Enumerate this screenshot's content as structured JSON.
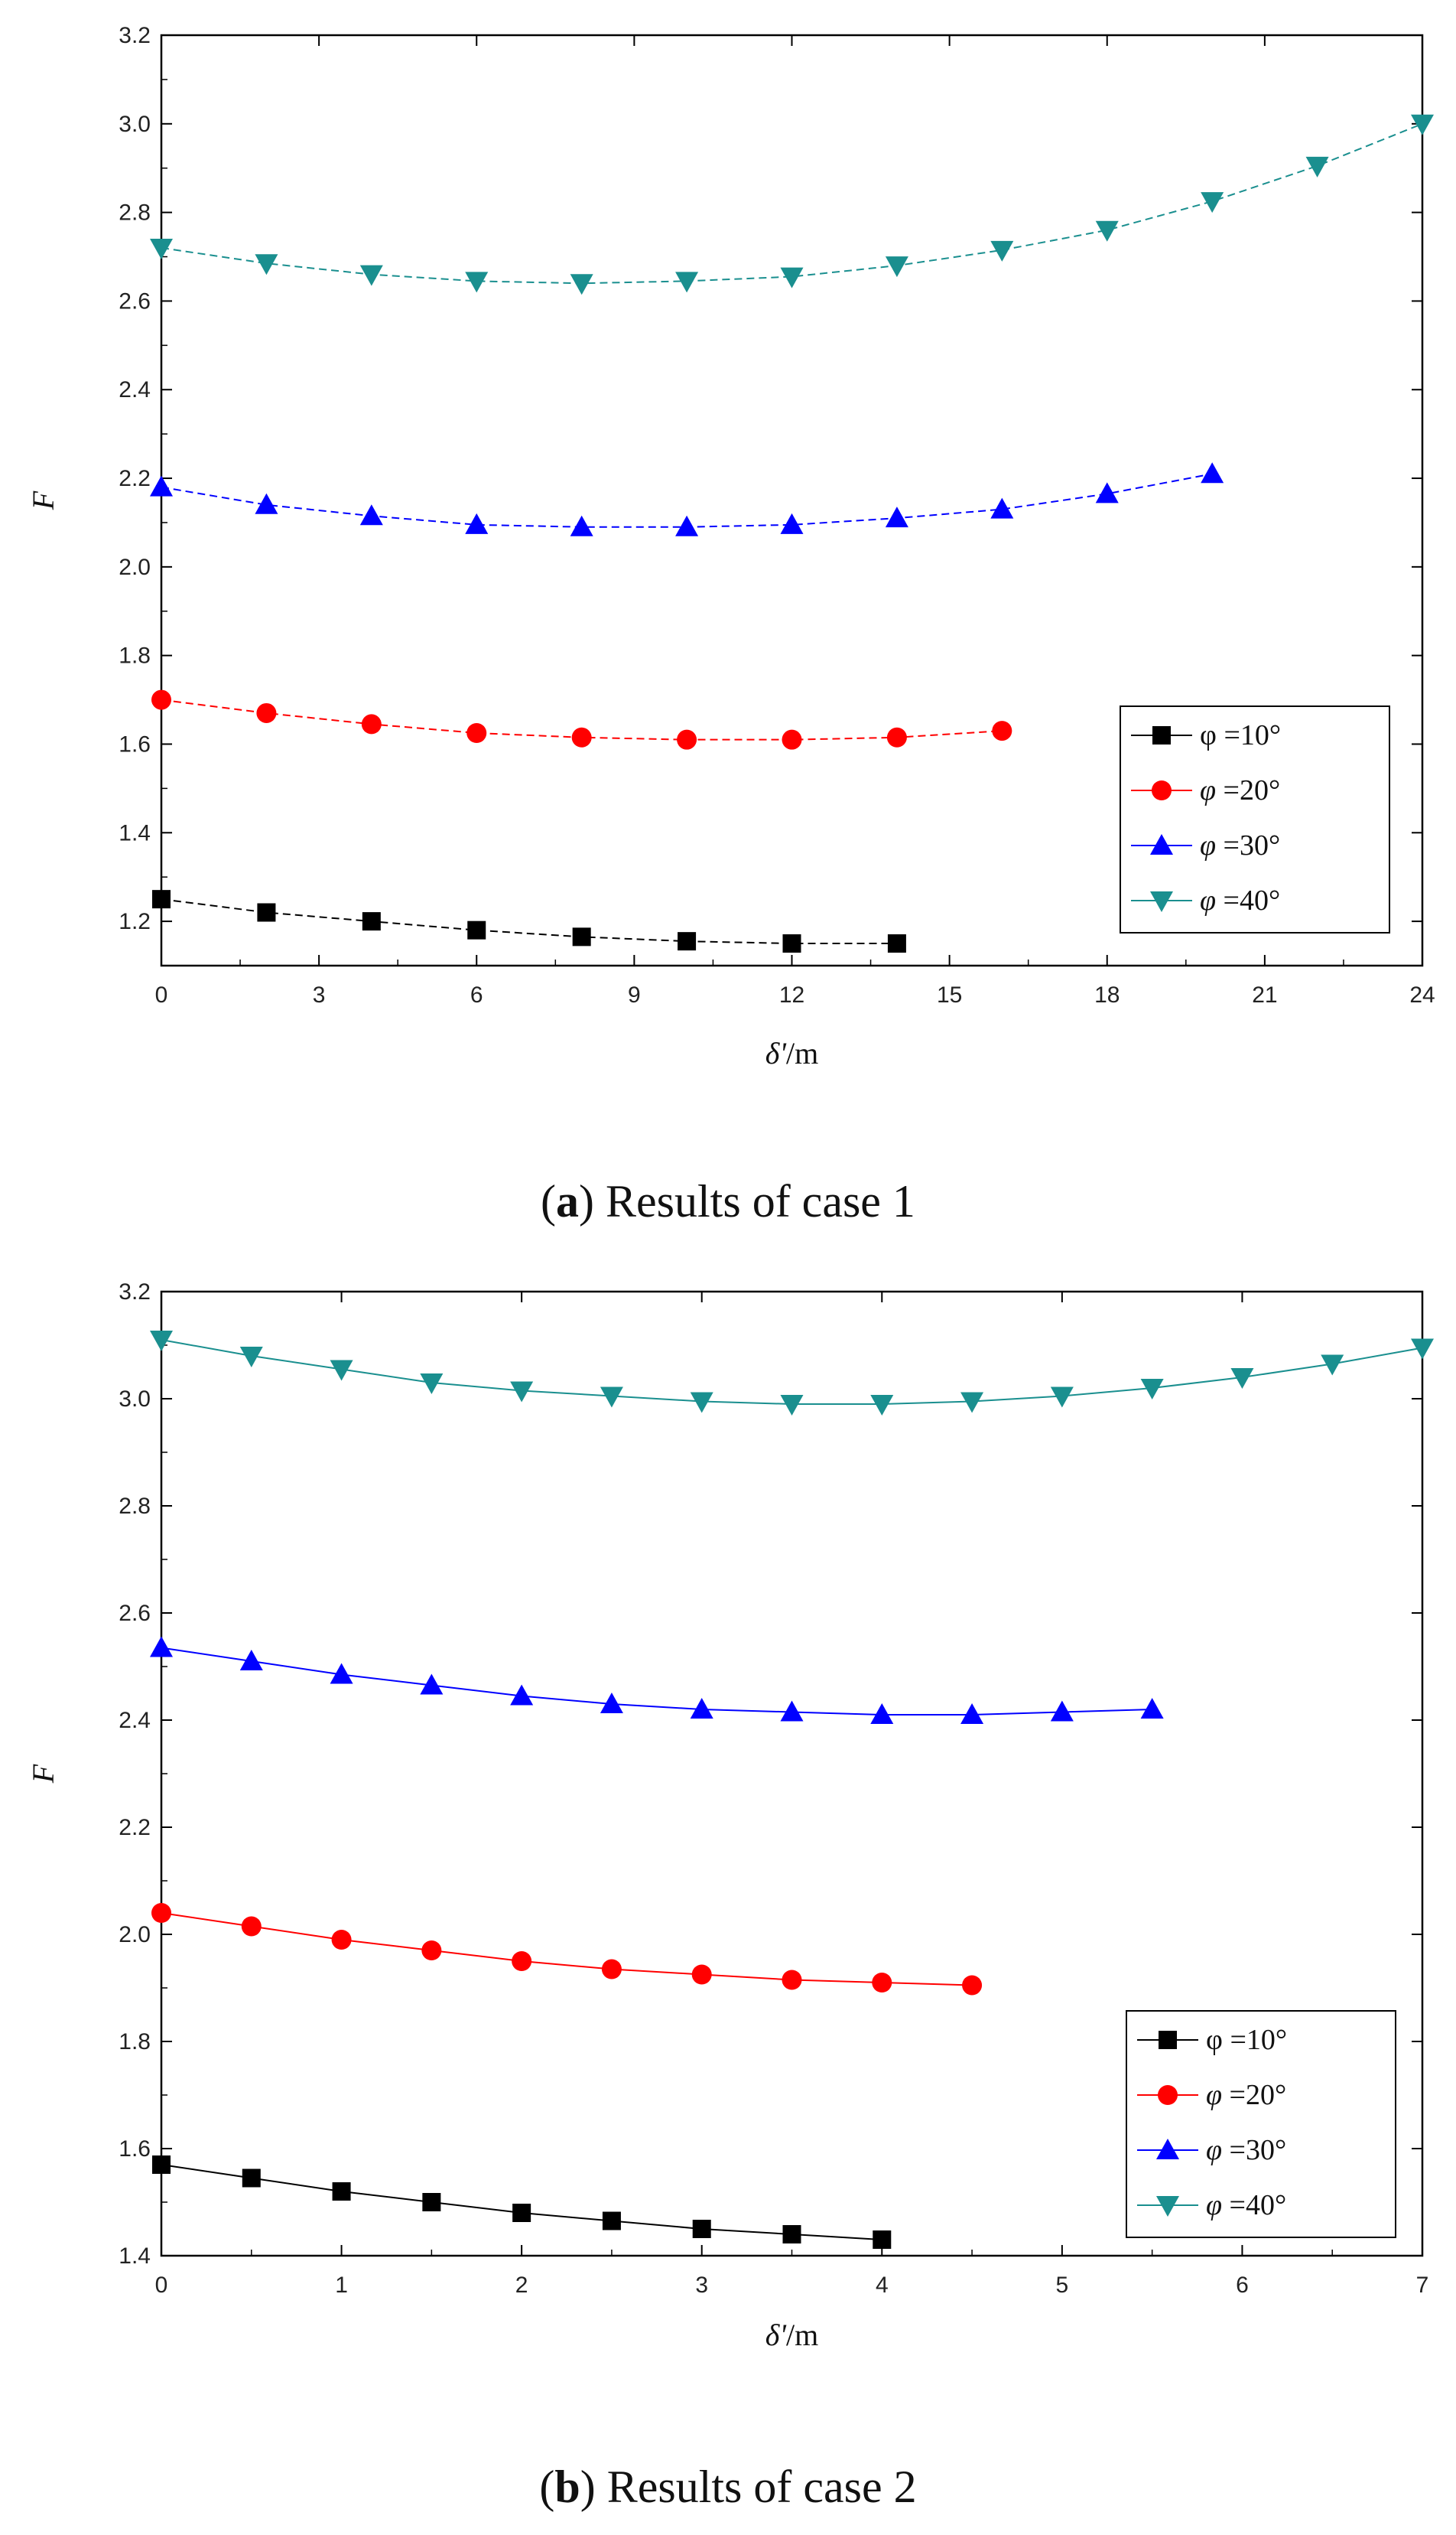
{
  "chart_data": [
    {
      "type": "line",
      "caption": {
        "letter": "a",
        "text": "Results of case 1"
      },
      "xlabel": {
        "symbol": "δ'",
        "unit": "/m"
      },
      "ylabel": "F",
      "xlim": [
        0,
        24
      ],
      "ylim": [
        1.1,
        3.2
      ],
      "xticks": [
        0,
        3,
        6,
        9,
        12,
        15,
        18,
        21,
        24
      ],
      "yticks": [
        1.2,
        1.4,
        1.6,
        1.8,
        2.0,
        2.2,
        2.4,
        2.6,
        2.8,
        3.0,
        3.2
      ],
      "ytick_labels": [
        "1.2",
        "1.4",
        "1.6",
        "1.8",
        "2.0",
        "2.2",
        "2.4",
        "2.6",
        "2.8",
        "3.0",
        "3.2"
      ],
      "legend_position": "bottom-right",
      "series": [
        {
          "name": "φ =10°",
          "symbol": "φ",
          "rest": " =10°",
          "color": "#000000",
          "marker": "square",
          "x": [
            0,
            2,
            4,
            6,
            8,
            10,
            12,
            14
          ],
          "y": [
            1.25,
            1.22,
            1.2,
            1.18,
            1.165,
            1.155,
            1.15,
            1.15
          ]
        },
        {
          "name": "φ =20°",
          "symbol": "φ",
          "rest": " =20°",
          "color": "#ff0000",
          "marker": "circle",
          "x": [
            0,
            2,
            4,
            6,
            8,
            10,
            12,
            14,
            16
          ],
          "y": [
            1.7,
            1.67,
            1.645,
            1.625,
            1.615,
            1.61,
            1.61,
            1.615,
            1.63
          ]
        },
        {
          "name": "φ =30°",
          "symbol": "φ",
          "rest": " =30°",
          "color": "#0000ff",
          "marker": "triangle-up",
          "x": [
            0,
            2,
            4,
            6,
            8,
            10,
            12,
            14,
            16,
            18,
            20
          ],
          "y": [
            2.18,
            2.14,
            2.115,
            2.095,
            2.09,
            2.09,
            2.095,
            2.11,
            2.13,
            2.165,
            2.21
          ]
        },
        {
          "name": "φ =40°",
          "symbol": "φ",
          "rest": " =40°",
          "color": "#1a8f8f",
          "marker": "triangle-down",
          "x": [
            0,
            2,
            4,
            6,
            8,
            10,
            12,
            14,
            16,
            18,
            20,
            22,
            24
          ],
          "y": [
            2.72,
            2.685,
            2.66,
            2.645,
            2.64,
            2.645,
            2.655,
            2.68,
            2.715,
            2.76,
            2.825,
            2.905,
            3.0
          ]
        }
      ]
    },
    {
      "type": "line",
      "caption": {
        "letter": "b",
        "text": "Results of case 2"
      },
      "xlabel": {
        "symbol": "δ'",
        "unit": "/m"
      },
      "ylabel": "F",
      "xlim": [
        0,
        7
      ],
      "ylim": [
        1.4,
        3.2
      ],
      "xticks": [
        0,
        1,
        2,
        3,
        4,
        5,
        6,
        7
      ],
      "yticks": [
        1.4,
        1.6,
        1.8,
        2.0,
        2.2,
        2.4,
        2.6,
        2.8,
        3.0,
        3.2
      ],
      "ytick_labels": [
        "1.4",
        "1.6",
        "1.8",
        "2.0",
        "2.2",
        "2.4",
        "2.6",
        "2.8",
        "3.0",
        "3.2"
      ],
      "legend_position": "bottom-right",
      "series": [
        {
          "name": "φ =10°",
          "symbol": "φ",
          "rest": " =10°",
          "color": "#000000",
          "marker": "square",
          "x": [
            0,
            0.5,
            1,
            1.5,
            2,
            2.5,
            3,
            3.5,
            4
          ],
          "y": [
            1.57,
            1.545,
            1.52,
            1.5,
            1.48,
            1.465,
            1.45,
            1.44,
            1.43
          ]
        },
        {
          "name": "φ =20°",
          "symbol": "φ",
          "rest": " =20°",
          "color": "#ff0000",
          "marker": "circle",
          "x": [
            0,
            0.5,
            1,
            1.5,
            2,
            2.5,
            3,
            3.5,
            4,
            4.5
          ],
          "y": [
            2.04,
            2.015,
            1.99,
            1.97,
            1.95,
            1.935,
            1.925,
            1.915,
            1.91,
            1.905
          ]
        },
        {
          "name": "φ =30°",
          "symbol": "φ",
          "rest": " =30°",
          "color": "#0000ff",
          "marker": "triangle-up",
          "x": [
            0,
            0.5,
            1,
            1.5,
            2,
            2.5,
            3,
            3.5,
            4,
            4.5,
            5,
            5.5
          ],
          "y": [
            2.535,
            2.51,
            2.485,
            2.465,
            2.445,
            2.43,
            2.42,
            2.415,
            2.41,
            2.41,
            2.415,
            2.42
          ]
        },
        {
          "name": "φ =40°",
          "symbol": "φ",
          "rest": " =40°",
          "color": "#1a8f8f",
          "marker": "triangle-down",
          "x": [
            0,
            0.5,
            1,
            1.5,
            2,
            2.5,
            3,
            3.5,
            4,
            4.5,
            5,
            5.5,
            6,
            6.5,
            7
          ],
          "y": [
            3.11,
            3.08,
            3.055,
            3.03,
            3.015,
            3.005,
            2.995,
            2.99,
            2.99,
            2.995,
            3.005,
            3.02,
            3.04,
            3.065,
            3.095
          ]
        }
      ]
    }
  ]
}
